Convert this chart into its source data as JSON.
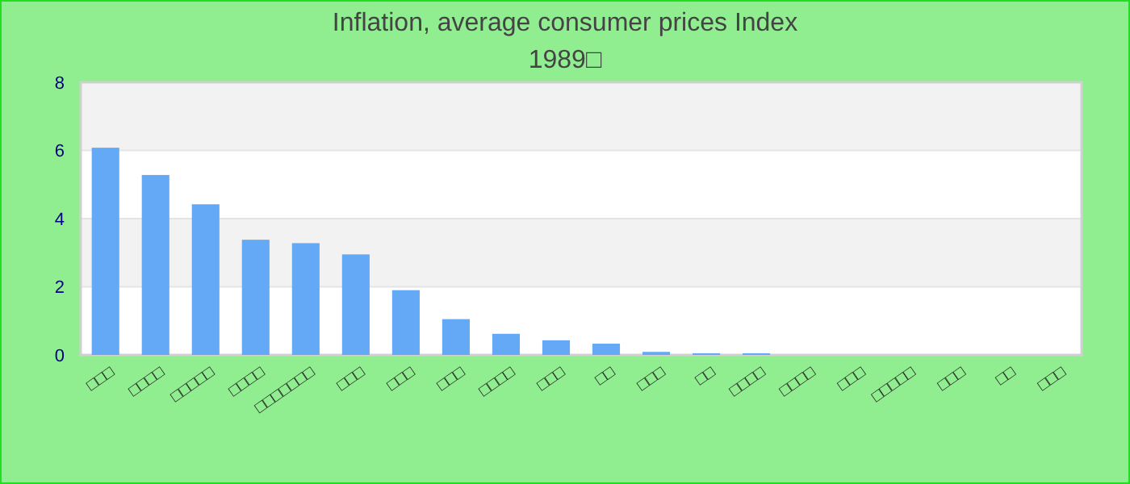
{
  "chart_data": {
    "type": "bar",
    "title": "Inflation, average consumer prices  Index",
    "subtitle": "1989□",
    "categories": [
      "□□□",
      "□□□□",
      "□□□□□",
      "□□□□",
      "□□□□□□□",
      "□□□",
      "□□□",
      "□□□",
      "□□□□",
      "□□□",
      "□□",
      "□□□",
      "□□",
      "□□□□",
      "□□□□",
      "□□□",
      "□□□□□",
      "□□□",
      "□□",
      "□□□"
    ],
    "values": [
      6.08,
      5.28,
      4.42,
      3.38,
      3.28,
      2.95,
      1.9,
      1.05,
      0.62,
      0.43,
      0.33,
      0.09,
      0.05,
      0.05,
      0,
      0,
      0,
      0,
      0,
      0
    ],
    "color": "#63a9f5",
    "ylim": [
      0,
      8
    ],
    "yticks": [
      0,
      2,
      4,
      6,
      8
    ],
    "grid": "y"
  }
}
